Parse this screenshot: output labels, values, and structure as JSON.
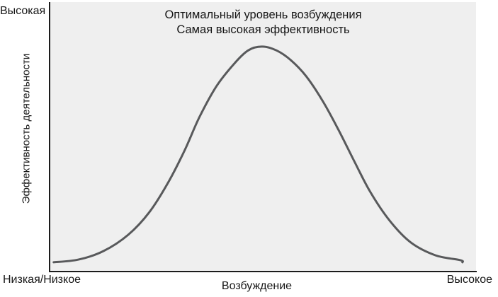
{
  "colors": {
    "page_background": "#ffffff",
    "plot_background": "#efefef",
    "curve": "#58595b",
    "axis": "#1c1c1c",
    "text": "#161616"
  },
  "chart_data": {
    "type": "line",
    "annotation_lines": [
      "Оптимальный уровень возбуждения",
      "Самая высокая эффективность"
    ],
    "xlabel": "Возбуждение",
    "ylabel": "Эффективность деятельности",
    "x_tick_labels": {
      "left": "Низкая/Низкое",
      "right": "Высокое"
    },
    "y_tick_labels": {
      "top": "Высокая",
      "bottom": "Низкая/Низкое"
    },
    "x_range": [
      0,
      1
    ],
    "y_range": [
      0,
      1
    ],
    "grid": false,
    "legend": false,
    "series": [
      {
        "name": "performance_curve",
        "points": [
          [
            0.008,
            0.032
          ],
          [
            0.066,
            0.042
          ],
          [
            0.125,
            0.074
          ],
          [
            0.183,
            0.135
          ],
          [
            0.233,
            0.22
          ],
          [
            0.277,
            0.331
          ],
          [
            0.316,
            0.452
          ],
          [
            0.35,
            0.574
          ],
          [
            0.39,
            0.69
          ],
          [
            0.432,
            0.775
          ],
          [
            0.465,
            0.825
          ],
          [
            0.497,
            0.839
          ],
          [
            0.531,
            0.825
          ],
          [
            0.565,
            0.788
          ],
          [
            0.601,
            0.728
          ],
          [
            0.64,
            0.635
          ],
          [
            0.678,
            0.524
          ],
          [
            0.714,
            0.41
          ],
          [
            0.752,
            0.294
          ],
          [
            0.797,
            0.188
          ],
          [
            0.847,
            0.106
          ],
          [
            0.905,
            0.058
          ],
          [
            0.963,
            0.04
          ],
          [
            0.968,
            0.032
          ]
        ]
      }
    ]
  }
}
